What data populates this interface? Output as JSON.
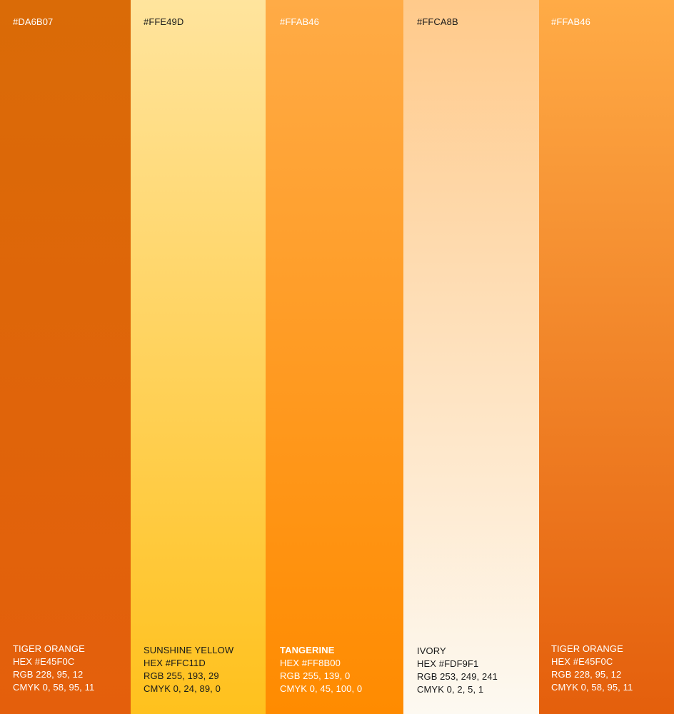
{
  "swatches": [
    {
      "top_hex": "#DA6B07",
      "gradient_top": "#DA6B07",
      "gradient_bottom": "#E45F0C",
      "text_color": "#FFFFFF",
      "name": "TIGER ORANGE",
      "hex": "HEX #E45F0C",
      "rgb": "RGB 228, 95, 12",
      "cmyk": "CMYK 0, 58, 95, 11"
    },
    {
      "top_hex": "#FFE49D",
      "gradient_top": "#FFE49D",
      "gradient_bottom": "#FFC11D",
      "text_color": "#1A1A1A",
      "name": "SUNSHINE YELLOW",
      "hex": "HEX #FFC11D",
      "rgb": "RGB 255, 193, 29",
      "cmyk": "CMYK 0, 24, 89, 0"
    },
    {
      "top_hex": "#FFAB46",
      "gradient_top": "#FFAB46",
      "gradient_bottom": "#FF8B00",
      "text_color": "#FFFFFF",
      "name": "TANGERINE",
      "hex": "HEX #FF8B00",
      "rgb": "RGB 255, 139, 0",
      "cmyk": "CMYK 0, 45, 100, 0"
    },
    {
      "top_hex": "#FFCA8B",
      "gradient_top": "#FFCA8B",
      "gradient_bottom": "#FDF9F1",
      "text_color": "#1A1A1A",
      "name": "IVORY",
      "hex": "HEX #FDF9F1",
      "rgb": "RGB 253, 249, 241",
      "cmyk": "CMYK 0, 2, 5, 1"
    },
    {
      "top_hex": "#FFAB46",
      "gradient_top": "#FFAB46",
      "gradient_bottom": "#E45F0C",
      "text_color": "#FFFFFF",
      "name": "TIGER ORANGE",
      "hex": "HEX #E45F0C",
      "rgb": "RGB 228, 95, 12",
      "cmyk": "CMYK 0, 58, 95, 11"
    }
  ]
}
